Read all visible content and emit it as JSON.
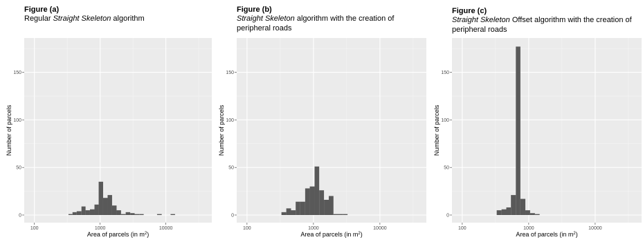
{
  "colors": {
    "panel_bg": "#ebebeb",
    "grid_major": "#ffffff",
    "grid_minor": "#f5f5f5",
    "bar": "#595959",
    "tick_text": "#4d4d4d"
  },
  "chart_data": [
    {
      "type": "bar",
      "title": "Figure (a)",
      "subtitle": {
        "prefix": "Regular ",
        "italic": "Straight Skeleton",
        "suffix": " algorithm"
      },
      "xlabel": "Area of parcels (in m",
      "xlabel_sup": "2",
      "xlabel_end": ")",
      "ylabel": "Number of parcels",
      "x_scale": "log10",
      "xlim": [
        70,
        50000
      ],
      "ylim": [
        -8,
        186
      ],
      "x_ticks": [
        100,
        1000,
        10000
      ],
      "x_tick_labels": [
        "100",
        "1000",
        "10000"
      ],
      "y_ticks": [
        0,
        50,
        100,
        150
      ],
      "y_tick_labels": [
        "0",
        "50",
        "100",
        "150"
      ],
      "grid": true,
      "bins": [
        {
          "x0": 330,
          "x1": 380,
          "y": 1
        },
        {
          "x0": 380,
          "x1": 440,
          "y": 3
        },
        {
          "x0": 440,
          "x1": 520,
          "y": 4
        },
        {
          "x0": 520,
          "x1": 600,
          "y": 9
        },
        {
          "x0": 600,
          "x1": 700,
          "y": 5
        },
        {
          "x0": 700,
          "x1": 820,
          "y": 6
        },
        {
          "x0": 820,
          "x1": 950,
          "y": 11
        },
        {
          "x0": 950,
          "x1": 1110,
          "y": 35
        },
        {
          "x0": 1110,
          "x1": 1300,
          "y": 18
        },
        {
          "x0": 1300,
          "x1": 1520,
          "y": 21
        },
        {
          "x0": 1520,
          "x1": 1780,
          "y": 10
        },
        {
          "x0": 1780,
          "x1": 2080,
          "y": 5
        },
        {
          "x0": 2080,
          "x1": 2450,
          "y": 1
        },
        {
          "x0": 2450,
          "x1": 2870,
          "y": 3
        },
        {
          "x0": 2870,
          "x1": 3350,
          "y": 2
        },
        {
          "x0": 3350,
          "x1": 3950,
          "y": 1
        },
        {
          "x0": 3950,
          "x1": 4600,
          "y": 1
        },
        {
          "x0": 7350,
          "x1": 8650,
          "y": 1
        },
        {
          "x0": 11800,
          "x1": 13800,
          "y": 1
        }
      ]
    },
    {
      "type": "bar",
      "title": "Figure (b)",
      "subtitle": {
        "prefix": "",
        "italic": "Straight Skeleton",
        "suffix": " algorithm with the creation of peripheral roads"
      },
      "xlabel": "Area of parcels (in m",
      "xlabel_sup": "2",
      "xlabel_end": ")",
      "ylabel": "Number of parcels",
      "x_scale": "log10",
      "xlim": [
        70,
        50000
      ],
      "ylim": [
        -8,
        186
      ],
      "x_ticks": [
        100,
        1000,
        10000
      ],
      "x_tick_labels": [
        "100",
        "1000",
        "10000"
      ],
      "y_ticks": [
        0,
        50,
        100,
        150
      ],
      "y_tick_labels": [
        "0",
        "50",
        "100",
        "150"
      ],
      "grid": true,
      "bins": [
        {
          "x0": 330,
          "x1": 390,
          "y": 3
        },
        {
          "x0": 390,
          "x1": 460,
          "y": 7
        },
        {
          "x0": 460,
          "x1": 540,
          "y": 5
        },
        {
          "x0": 540,
          "x1": 630,
          "y": 14
        },
        {
          "x0": 630,
          "x1": 750,
          "y": 14
        },
        {
          "x0": 750,
          "x1": 880,
          "y": 28
        },
        {
          "x0": 880,
          "x1": 1040,
          "y": 30
        },
        {
          "x0": 1040,
          "x1": 1220,
          "y": 51
        },
        {
          "x0": 1220,
          "x1": 1440,
          "y": 26
        },
        {
          "x0": 1440,
          "x1": 1700,
          "y": 16
        },
        {
          "x0": 1700,
          "x1": 2000,
          "y": 20
        },
        {
          "x0": 2000,
          "x1": 2350,
          "y": 1
        },
        {
          "x0": 2350,
          "x1": 2770,
          "y": 1
        },
        {
          "x0": 2770,
          "x1": 3260,
          "y": 1
        }
      ]
    },
    {
      "type": "bar",
      "title": "Figure (c)",
      "subtitle": {
        "prefix": "",
        "italic": "Straight Skeleton",
        "suffix": " Offset algorithm  with the creation of peripheral roads"
      },
      "xlabel": "Area of parcels (in m",
      "xlabel_sup": "2",
      "xlabel_end": ")",
      "ylabel": "Number of parcels",
      "x_scale": "log10",
      "xlim": [
        70,
        50000
      ],
      "ylim": [
        -8,
        186
      ],
      "x_ticks": [
        100,
        1000,
        10000
      ],
      "x_tick_labels": [
        "100",
        "1000",
        "10000"
      ],
      "y_ticks": [
        0,
        50,
        100,
        150
      ],
      "y_tick_labels": [
        "0",
        "50",
        "100",
        "150"
      ],
      "grid": true,
      "bins": [
        {
          "x0": 330,
          "x1": 390,
          "y": 5
        },
        {
          "x0": 390,
          "x1": 460,
          "y": 6
        },
        {
          "x0": 460,
          "x1": 540,
          "y": 8
        },
        {
          "x0": 540,
          "x1": 640,
          "y": 21
        },
        {
          "x0": 640,
          "x1": 750,
          "y": 177
        },
        {
          "x0": 750,
          "x1": 890,
          "y": 17
        },
        {
          "x0": 890,
          "x1": 1050,
          "y": 5
        },
        {
          "x0": 1050,
          "x1": 1240,
          "y": 2
        },
        {
          "x0": 1240,
          "x1": 1460,
          "y": 1
        }
      ]
    }
  ]
}
